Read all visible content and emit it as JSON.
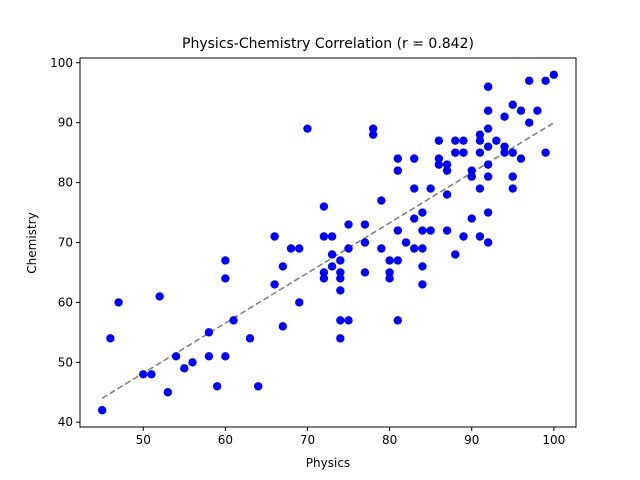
{
  "chart_data": {
    "type": "scatter",
    "title": "Physics-Chemistry Correlation (r = 0.842)",
    "xlabel": "Physics",
    "ylabel": "Chemistry",
    "xlim": [
      42.3,
      102.7
    ],
    "ylim": [
      39.2,
      100.8
    ],
    "xticks": [
      50,
      60,
      70,
      80,
      90,
      100
    ],
    "yticks": [
      40,
      50,
      60,
      70,
      80,
      90,
      100
    ],
    "grid": false,
    "point_color": "#0000ff",
    "trend_color": "#808080",
    "trendline": {
      "x": [
        45,
        100
      ],
      "y": [
        44.0,
        90.0
      ]
    },
    "points": [
      [
        45,
        42
      ],
      [
        46,
        54
      ],
      [
        47,
        60
      ],
      [
        50,
        48
      ],
      [
        51,
        48
      ],
      [
        52,
        61
      ],
      [
        53,
        45
      ],
      [
        54,
        51
      ],
      [
        55,
        49
      ],
      [
        56,
        50
      ],
      [
        58,
        55
      ],
      [
        58,
        51
      ],
      [
        59,
        46
      ],
      [
        60,
        67
      ],
      [
        60,
        64
      ],
      [
        60,
        51
      ],
      [
        61,
        57
      ],
      [
        63,
        54
      ],
      [
        64,
        46
      ],
      [
        66,
        71
      ],
      [
        66,
        63
      ],
      [
        67,
        66
      ],
      [
        67,
        56
      ],
      [
        68,
        69
      ],
      [
        69,
        69
      ],
      [
        69,
        60
      ],
      [
        70,
        89
      ],
      [
        72,
        76
      ],
      [
        72,
        71
      ],
      [
        72,
        65
      ],
      [
        72,
        64
      ],
      [
        73,
        71
      ],
      [
        73,
        68
      ],
      [
        73,
        66
      ],
      [
        74,
        67
      ],
      [
        74,
        65
      ],
      [
        74,
        64
      ],
      [
        74,
        62
      ],
      [
        74,
        57
      ],
      [
        74,
        54
      ],
      [
        75,
        73
      ],
      [
        75,
        69
      ],
      [
        75,
        57
      ],
      [
        77,
        73
      ],
      [
        77,
        70
      ],
      [
        77,
        65
      ],
      [
        78,
        89
      ],
      [
        78,
        88
      ],
      [
        79,
        77
      ],
      [
        79,
        69
      ],
      [
        80,
        67
      ],
      [
        80,
        65
      ],
      [
        80,
        64
      ],
      [
        81,
        84
      ],
      [
        81,
        82
      ],
      [
        81,
        72
      ],
      [
        81,
        67
      ],
      [
        81,
        57
      ],
      [
        82,
        70
      ],
      [
        83,
        84
      ],
      [
        83,
        79
      ],
      [
        83,
        74
      ],
      [
        83,
        69
      ],
      [
        84,
        75
      ],
      [
        84,
        72
      ],
      [
        84,
        69
      ],
      [
        84,
        66
      ],
      [
        84,
        63
      ],
      [
        85,
        79
      ],
      [
        85,
        72
      ],
      [
        86,
        87
      ],
      [
        86,
        84
      ],
      [
        86,
        83
      ],
      [
        87,
        83
      ],
      [
        87,
        82
      ],
      [
        87,
        78
      ],
      [
        87,
        72
      ],
      [
        88,
        87
      ],
      [
        88,
        85
      ],
      [
        88,
        68
      ],
      [
        89,
        87
      ],
      [
        89,
        85
      ],
      [
        89,
        71
      ],
      [
        90,
        82
      ],
      [
        90,
        81
      ],
      [
        90,
        74
      ],
      [
        91,
        88
      ],
      [
        91,
        87
      ],
      [
        91,
        85
      ],
      [
        91,
        79
      ],
      [
        91,
        71
      ],
      [
        92,
        96
      ],
      [
        92,
        92
      ],
      [
        92,
        89
      ],
      [
        92,
        86
      ],
      [
        92,
        83
      ],
      [
        92,
        81
      ],
      [
        92,
        75
      ],
      [
        92,
        70
      ],
      [
        93,
        87
      ],
      [
        94,
        91
      ],
      [
        94,
        86
      ],
      [
        94,
        85
      ],
      [
        95,
        93
      ],
      [
        95,
        85
      ],
      [
        95,
        81
      ],
      [
        95,
        79
      ],
      [
        96,
        92
      ],
      [
        96,
        84
      ],
      [
        97,
        97
      ],
      [
        97,
        90
      ],
      [
        98,
        92
      ],
      [
        99,
        97
      ],
      [
        99,
        85
      ],
      [
        100,
        98
      ]
    ]
  }
}
